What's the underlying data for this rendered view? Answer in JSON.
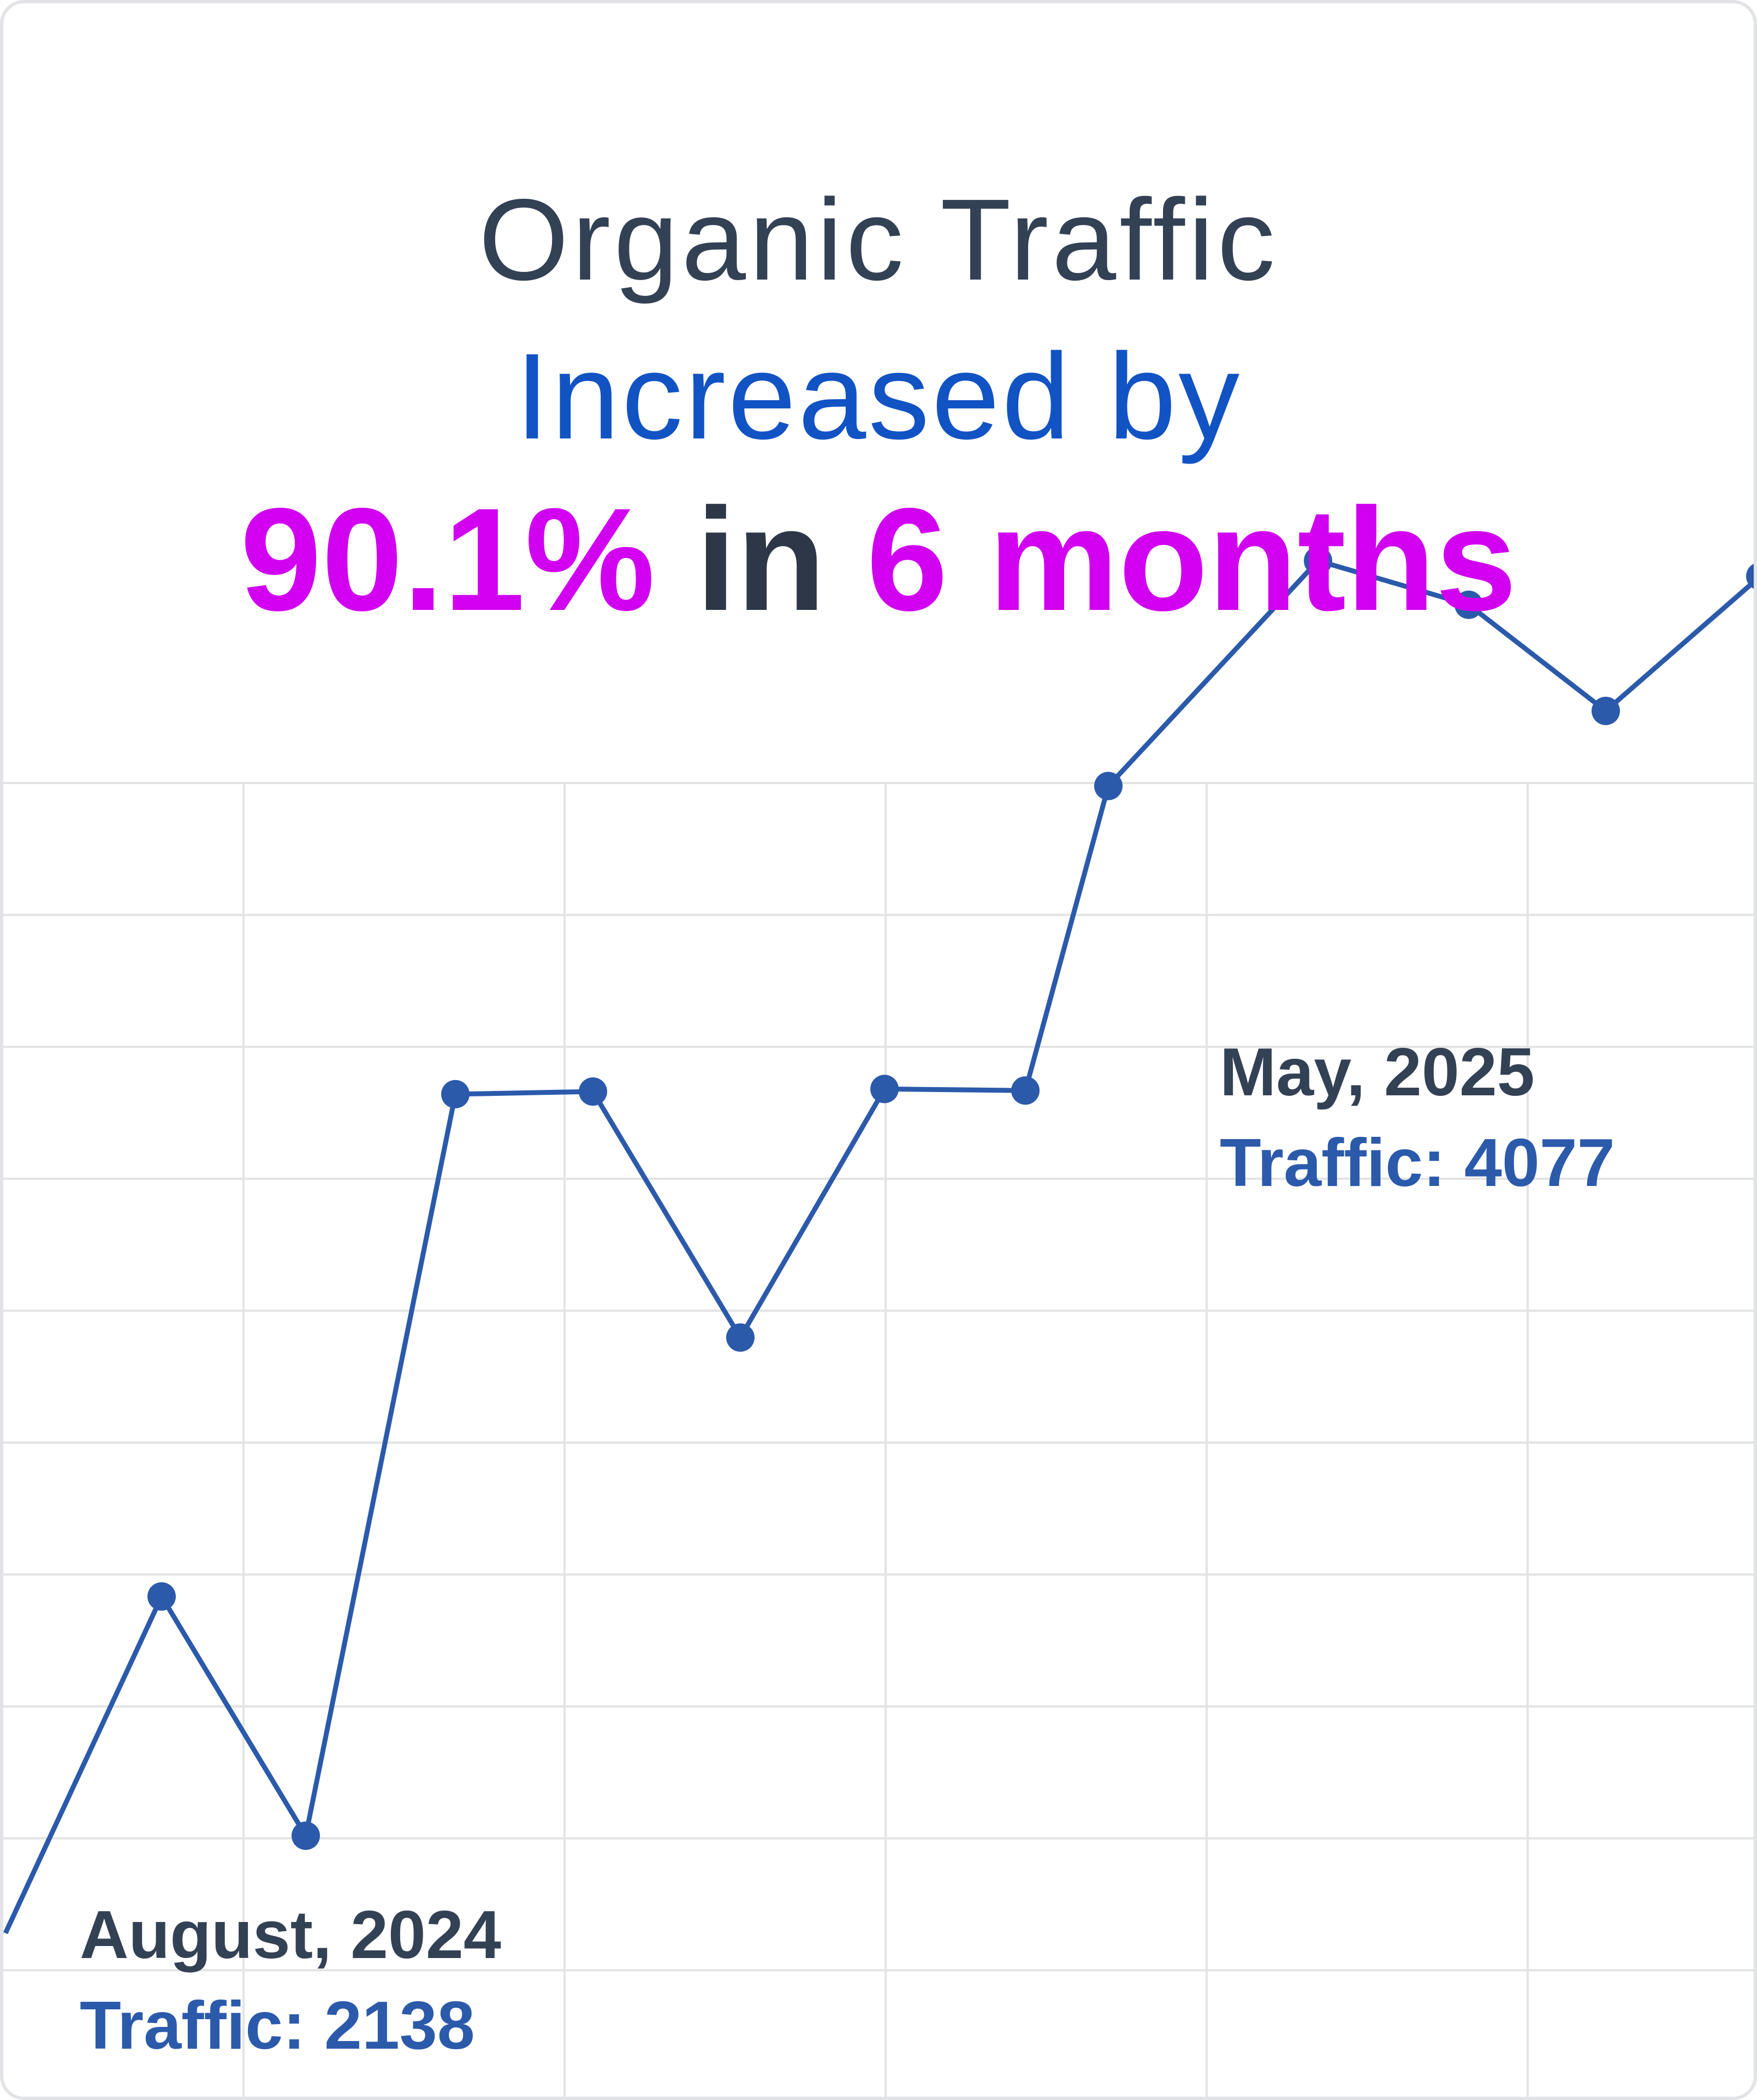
{
  "headline": {
    "line1": "Organic Traffic",
    "line2": "Increased by",
    "line3_part1": "90.1%",
    "line3_part2": " in ",
    "line3_part3": "6 months"
  },
  "colors": {
    "heading": "#334155",
    "blue": "#1253c4",
    "magenta": "#d100f0",
    "series": "#2b5aab",
    "grid": "#e3e3e3",
    "annotation_date": "#334155",
    "annotation_value": "#2b5aab"
  },
  "annotations": [
    {
      "date": "August, 2024",
      "value_text": "Traffic: 2138"
    },
    {
      "date": "May, 2025",
      "value_text": "Traffic: 4077"
    }
  ],
  "chart_data": {
    "type": "line",
    "title": "",
    "xlabel": "",
    "ylabel": "",
    "grid": true,
    "x": [
      0,
      1,
      2,
      3,
      4,
      5,
      6,
      7,
      8,
      9,
      10,
      11,
      12,
      13
    ],
    "series": [
      {
        "values": [
          1950,
          2600,
          2138,
          3570,
          3575,
          3100,
          3580,
          3577,
          4165,
          4600,
          4515,
          4310,
          4570,
          4900
        ]
      }
    ],
    "ylim": [
      1600,
      4800
    ]
  }
}
